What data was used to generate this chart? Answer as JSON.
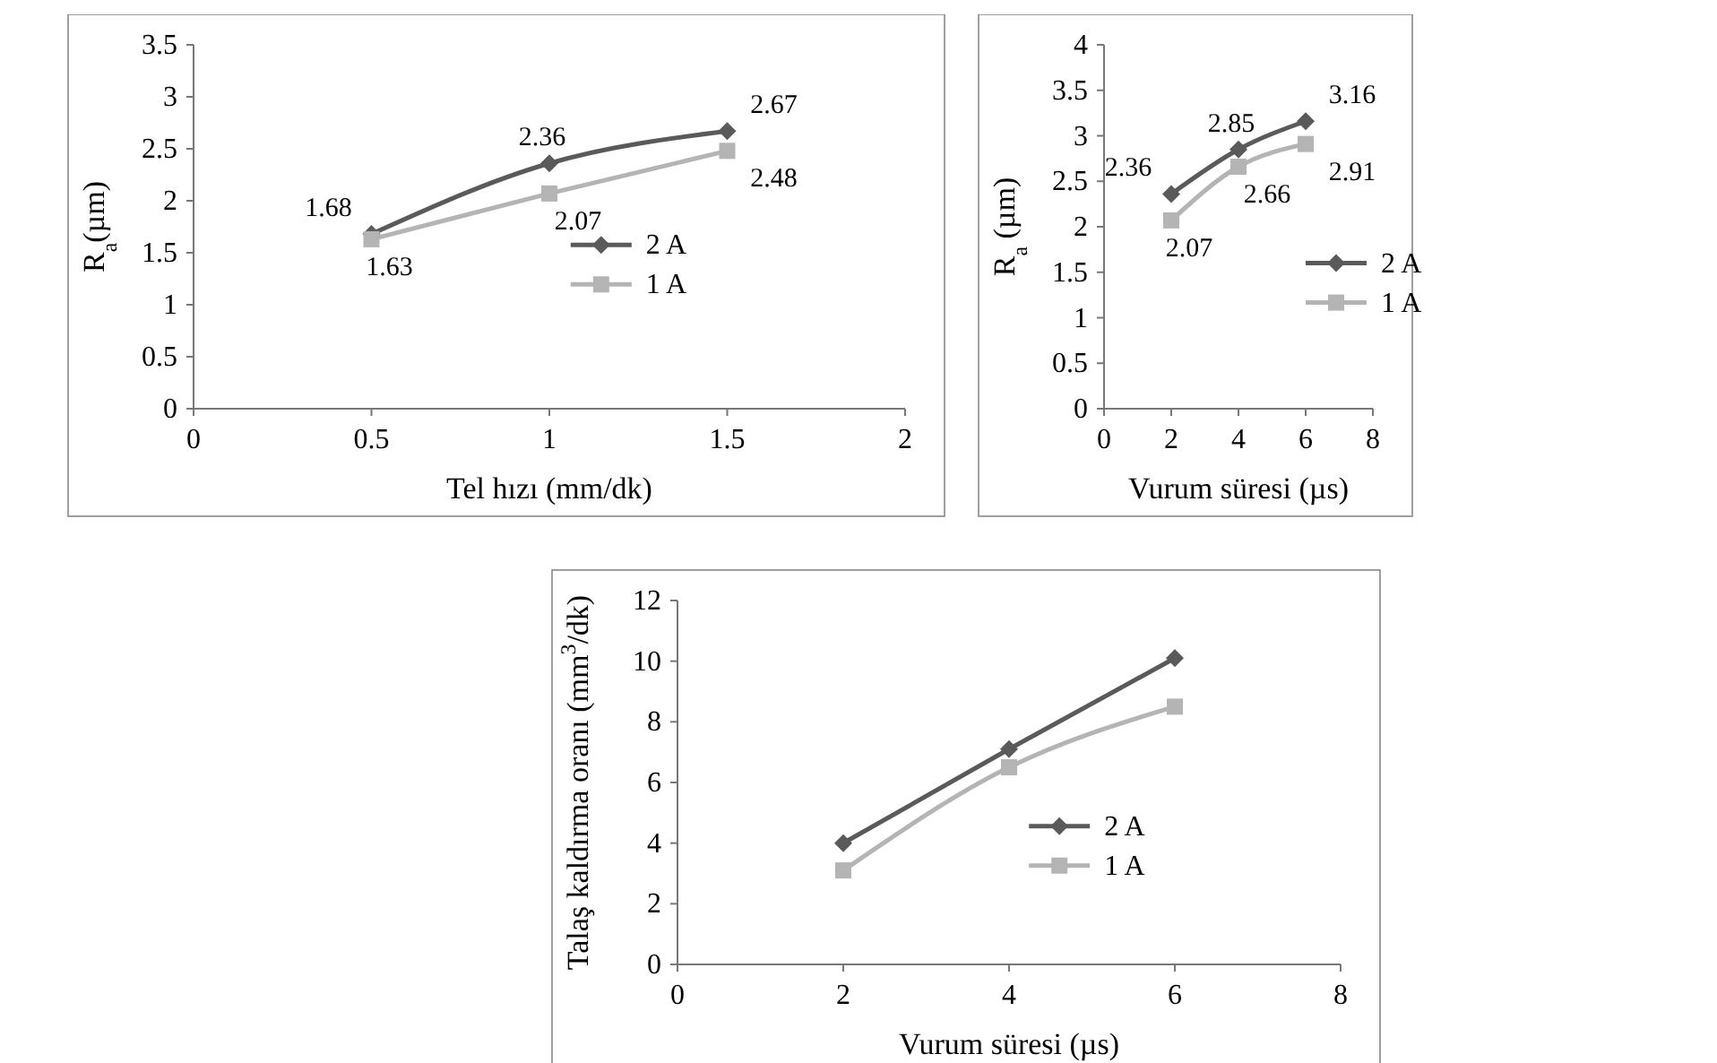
{
  "chart_data": [
    {
      "type": "line",
      "xlabel": "Tel hızı (mm/dk)",
      "ylabel": "R$_{a}$(µm)",
      "x": [
        0.5,
        1,
        1.5
      ],
      "xlim": [
        0,
        2
      ],
      "xticks": [
        0,
        0.5,
        1,
        1.5,
        2
      ],
      "ylim": [
        0,
        3.5
      ],
      "yticks": [
        0,
        0.5,
        1,
        1.5,
        2,
        2.5,
        3,
        3.5
      ],
      "data_labels": true,
      "legend": "center",
      "grid": false,
      "series": [
        {
          "name": "2 A",
          "color": "#5a5a5a",
          "marker": "diamond",
          "values": [
            1.68,
            2.36,
            2.67
          ]
        },
        {
          "name": "1 A",
          "color": "#b4b4b4",
          "marker": "square",
          "values": [
            1.63,
            2.07,
            2.48
          ]
        }
      ]
    },
    {
      "type": "line",
      "xlabel": "Vurum süresi (µs)",
      "ylabel": "R$_{a}$ (µm)",
      "x": [
        2,
        4,
        6
      ],
      "xlim": [
        0,
        8
      ],
      "xticks": [
        0,
        2,
        4,
        6,
        8
      ],
      "ylim": [
        0,
        4
      ],
      "yticks": [
        0,
        0.5,
        1,
        1.5,
        2,
        2.5,
        3,
        3.5,
        4
      ],
      "data_labels": true,
      "legend": "right",
      "grid": false,
      "series": [
        {
          "name": "2 A",
          "color": "#5a5a5a",
          "marker": "diamond",
          "values": [
            2.36,
            2.85,
            3.16
          ]
        },
        {
          "name": "1 A",
          "color": "#b4b4b4",
          "marker": "square",
          "values": [
            2.07,
            2.66,
            2.91
          ]
        }
      ]
    },
    {
      "type": "line",
      "xlabel": "Vurum süresi (µs)",
      "ylabel": "Talaş kaldırma oranı (mm$^{3}$/dk)",
      "x": [
        2,
        4,
        6
      ],
      "xlim": [
        0,
        8
      ],
      "xticks": [
        0,
        2,
        4,
        6,
        8
      ],
      "ylim": [
        0,
        12
      ],
      "yticks": [
        0,
        2,
        4,
        6,
        8,
        10,
        12
      ],
      "legend": "bottom",
      "grid": false,
      "series": [
        {
          "name": "2 A",
          "color": "#5a5a5a",
          "marker": "diamond",
          "values": [
            4.0,
            7.1,
            10.1
          ]
        },
        {
          "name": "1 A",
          "color": "#b4b4b4",
          "marker": "square",
          "values": [
            3.1,
            6.5,
            8.5
          ]
        }
      ]
    }
  ]
}
